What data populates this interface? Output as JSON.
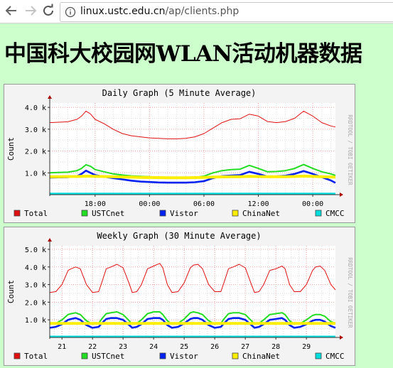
{
  "browser": {
    "url_host": "linux.ustc.edu.cn",
    "url_path": "/ap/clients.php",
    "back_icon": "arrow-left-icon",
    "forward_icon": "arrow-right-icon",
    "reload_icon": "reload-icon",
    "info_icon": "info-icon"
  },
  "page": {
    "title_part1": "中国科大校园网",
    "title_part2": "WLAN",
    "title_part3": "活动机器数据",
    "background": "#ccffcc"
  },
  "watermark": "RRDTOOL / TOBI OETIKER",
  "chart_data": [
    {
      "type": "line",
      "title": "Daily Graph (5 Minute Average)",
      "ylabel": "Count",
      "ylim": [
        0,
        4200
      ],
      "y_ticks": [
        1000,
        2000,
        3000,
        4000
      ],
      "y_tick_labels": [
        "1.0 k",
        "2.0 k",
        "3.0 k",
        "4.0 k"
      ],
      "x_range_hours": [
        13,
        44.5
      ],
      "x_ticks": [
        18,
        24,
        30,
        36,
        42
      ],
      "x_tick_labels": [
        "18:00",
        "00:00",
        "06:00",
        "12:00",
        "00:00"
      ],
      "grid": true,
      "legend_placement": "bottom",
      "series": [
        {
          "name": "Total",
          "color": "#e01010",
          "x": [
            13,
            14,
            15,
            16,
            16.5,
            17,
            17.5,
            18,
            19,
            20,
            21,
            22,
            23,
            24,
            25,
            26,
            27,
            28,
            29,
            30,
            31,
            32,
            33,
            34,
            35,
            36,
            37,
            38,
            39,
            40,
            41,
            42,
            43,
            44,
            44.5
          ],
          "values": [
            3300,
            3320,
            3340,
            3450,
            3600,
            3830,
            3700,
            3450,
            3250,
            3000,
            2800,
            2700,
            2650,
            2600,
            2580,
            2560,
            2560,
            2580,
            2650,
            2800,
            3050,
            3300,
            3450,
            3480,
            3690,
            3600,
            3350,
            3300,
            3350,
            3500,
            3830,
            3600,
            3300,
            3150,
            3100
          ]
        },
        {
          "name": "USTCnet",
          "color": "#22dd22",
          "x": [
            13,
            14,
            15,
            16,
            16.5,
            17,
            17.5,
            18,
            19,
            20,
            21,
            22,
            23,
            24,
            25,
            26,
            27,
            28,
            29,
            30,
            31,
            32,
            33,
            34,
            35,
            36,
            37,
            38,
            39,
            40,
            41,
            42,
            43,
            44,
            44.5
          ],
          "values": [
            1000,
            1020,
            1030,
            1100,
            1200,
            1370,
            1300,
            1150,
            1050,
            950,
            900,
            860,
            840,
            820,
            780,
            760,
            750,
            750,
            780,
            850,
            1000,
            1100,
            1150,
            1170,
            1340,
            1200,
            1050,
            1060,
            1100,
            1200,
            1380,
            1200,
            1050,
            950,
            880
          ]
        },
        {
          "name": "Vistor",
          "color": "#0022ee",
          "x": [
            13,
            14,
            15,
            16,
            16.5,
            17,
            17.5,
            18,
            19,
            20,
            21,
            22,
            23,
            24,
            25,
            26,
            27,
            28,
            29,
            30,
            31,
            32,
            33,
            34,
            35,
            36,
            37,
            38,
            39,
            40,
            41,
            42,
            43,
            44,
            44.5
          ],
          "values": [
            780,
            790,
            800,
            850,
            950,
            1100,
            1000,
            900,
            820,
            760,
            700,
            640,
            600,
            580,
            560,
            550,
            550,
            550,
            570,
            620,
            760,
            850,
            880,
            900,
            1050,
            950,
            830,
            840,
            870,
            950,
            1080,
            950,
            800,
            650,
            540
          ]
        },
        {
          "name": "ChinaNet",
          "color": "#ffee00",
          "x": [
            13,
            14,
            15,
            16,
            16.5,
            17,
            17.5,
            18,
            19,
            20,
            21,
            22,
            23,
            24,
            25,
            26,
            27,
            28,
            29,
            30,
            31,
            32,
            33,
            34,
            35,
            36,
            37,
            38,
            39,
            40,
            41,
            42,
            43,
            44,
            44.5
          ],
          "values": [
            820,
            825,
            830,
            835,
            840,
            850,
            845,
            840,
            830,
            820,
            810,
            800,
            790,
            785,
            780,
            775,
            775,
            775,
            780,
            790,
            805,
            815,
            820,
            825,
            840,
            830,
            820,
            820,
            825,
            835,
            850,
            840,
            825,
            810,
            800
          ]
        },
        {
          "name": "CMCC",
          "color": "#00dddd",
          "x": [
            13,
            44.5
          ],
          "values": [
            40,
            40
          ]
        }
      ]
    },
    {
      "type": "line",
      "title": "Weekly Graph (30 Minute Average)",
      "ylabel": "Count",
      "ylim": [
        0,
        5200
      ],
      "y_ticks": [
        1000,
        2000,
        3000,
        4000,
        5000
      ],
      "y_tick_labels": [
        "1.0 k",
        "2.0 k",
        "3.0 k",
        "4.0 k",
        "5.0 k"
      ],
      "x_range_days": [
        20.6,
        29.95
      ],
      "x_ticks": [
        21,
        22,
        23,
        24,
        25,
        26,
        27,
        28,
        29
      ],
      "x_tick_labels": [
        "21",
        "22",
        "23",
        "24",
        "25",
        "26",
        "27",
        "28",
        "29"
      ],
      "grid": true,
      "legend_placement": "bottom",
      "series": [
        {
          "name": "Total",
          "color": "#e01010",
          "x": [
            20.6,
            20.8,
            21.0,
            21.2,
            21.3,
            21.45,
            21.6,
            21.8,
            22.0,
            22.2,
            22.3,
            22.45,
            22.6,
            22.8,
            23.0,
            23.2,
            23.3,
            23.45,
            23.6,
            23.8,
            24.0,
            24.2,
            24.3,
            24.45,
            24.6,
            24.8,
            25.0,
            25.2,
            25.3,
            25.45,
            25.6,
            25.8,
            26.0,
            26.2,
            26.3,
            26.45,
            26.6,
            26.8,
            27.0,
            27.2,
            27.3,
            27.45,
            27.6,
            27.8,
            28.0,
            28.2,
            28.3,
            28.45,
            28.6,
            28.8,
            29.0,
            29.2,
            29.3,
            29.45,
            29.6,
            29.8,
            29.95
          ],
          "values": [
            2550,
            2600,
            3000,
            3800,
            3900,
            4000,
            3900,
            3000,
            2550,
            2600,
            3100,
            3900,
            4000,
            4150,
            3950,
            3050,
            2550,
            2600,
            3000,
            3900,
            4050,
            4200,
            3950,
            3000,
            2550,
            2600,
            3100,
            3950,
            4100,
            4150,
            3900,
            3000,
            2600,
            2600,
            3100,
            3900,
            4000,
            4150,
            3950,
            3000,
            2550,
            2600,
            3000,
            3800,
            3900,
            4050,
            3900,
            3000,
            2600,
            2600,
            3000,
            3800,
            4000,
            4050,
            3800,
            3000,
            2700
          ]
        },
        {
          "name": "USTCnet",
          "color": "#22dd22",
          "x": [
            20.6,
            20.8,
            21.0,
            21.2,
            21.3,
            21.45,
            21.6,
            21.8,
            22.0,
            22.2,
            22.3,
            22.45,
            22.6,
            22.8,
            23.0,
            23.2,
            23.3,
            23.45,
            23.6,
            23.8,
            24.0,
            24.2,
            24.3,
            24.45,
            24.6,
            24.8,
            25.0,
            25.2,
            25.3,
            25.45,
            25.6,
            25.8,
            26.0,
            26.2,
            26.3,
            26.45,
            26.6,
            26.8,
            27.0,
            27.2,
            27.3,
            27.45,
            27.6,
            27.8,
            28.0,
            28.2,
            28.3,
            28.45,
            28.6,
            28.8,
            29.0,
            29.2,
            29.3,
            29.45,
            29.6,
            29.8,
            29.95
          ],
          "values": [
            750,
            800,
            1000,
            1300,
            1350,
            1400,
            1300,
            950,
            750,
            800,
            1050,
            1350,
            1400,
            1450,
            1300,
            950,
            750,
            800,
            1000,
            1350,
            1450,
            1450,
            1300,
            950,
            750,
            800,
            1050,
            1400,
            1450,
            1400,
            1300,
            950,
            750,
            800,
            1050,
            1350,
            1400,
            1400,
            1300,
            950,
            750,
            800,
            1000,
            1300,
            1350,
            1400,
            1300,
            950,
            750,
            800,
            1000,
            1250,
            1300,
            1300,
            1200,
            900,
            800
          ]
        },
        {
          "name": "Vistor",
          "color": "#0022ee",
          "x": [
            20.6,
            20.8,
            21.0,
            21.2,
            21.3,
            21.45,
            21.6,
            21.8,
            22.0,
            22.2,
            22.3,
            22.45,
            22.6,
            22.8,
            23.0,
            23.2,
            23.3,
            23.45,
            23.6,
            23.8,
            24.0,
            24.2,
            24.3,
            24.45,
            24.6,
            24.8,
            25.0,
            25.2,
            25.3,
            25.45,
            25.6,
            25.8,
            26.0,
            26.2,
            26.3,
            26.45,
            26.6,
            26.8,
            27.0,
            27.2,
            27.3,
            27.45,
            27.6,
            27.8,
            28.0,
            28.2,
            28.3,
            28.45,
            28.6,
            28.8,
            29.0,
            29.2,
            29.3,
            29.45,
            29.6,
            29.8,
            29.95
          ],
          "values": [
            550,
            600,
            750,
            1000,
            1050,
            1100,
            1000,
            700,
            550,
            600,
            800,
            1050,
            1100,
            1100,
            1000,
            700,
            550,
            600,
            750,
            1050,
            1100,
            1100,
            1000,
            700,
            550,
            600,
            800,
            1050,
            1100,
            1100,
            1000,
            700,
            550,
            600,
            800,
            1050,
            1100,
            1100,
            1000,
            700,
            550,
            600,
            750,
            1000,
            1050,
            1100,
            1000,
            700,
            550,
            600,
            750,
            950,
            1000,
            1000,
            900,
            650,
            550
          ]
        },
        {
          "name": "ChinaNet",
          "color": "#ffee00",
          "x": [
            20.6,
            29.95
          ],
          "values": [
            800,
            800
          ]
        },
        {
          "name": "CMCC",
          "color": "#00dddd",
          "x": [
            20.6,
            29.95
          ],
          "values": [
            40,
            40
          ]
        }
      ]
    }
  ]
}
